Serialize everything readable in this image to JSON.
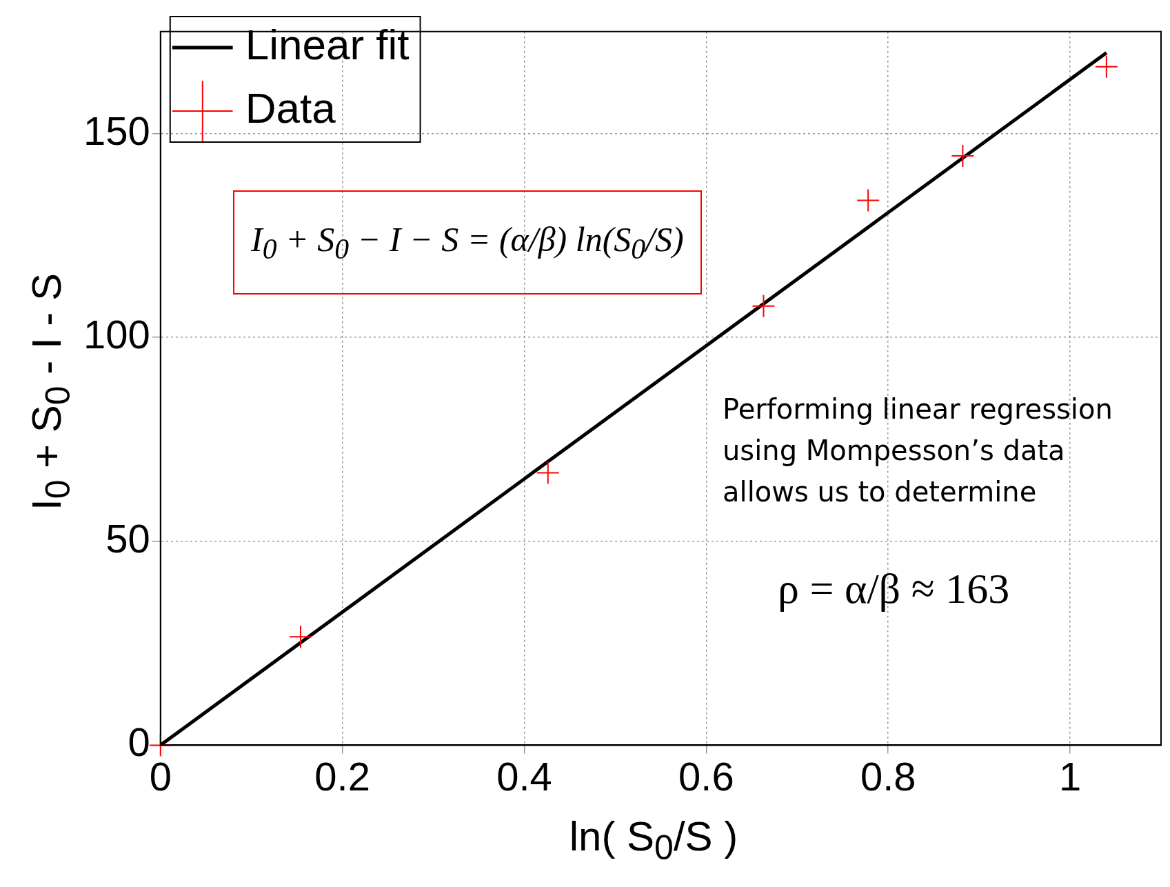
{
  "chart_data": {
    "type": "scatter",
    "xlabel": "ln( S$_{0}$/S )",
    "ylabel": "I$_{0}$ + S$_{0}$ - I - S",
    "xlim": [
      0,
      1.1
    ],
    "xticks": [
      0,
      0.2,
      0.4,
      0.6,
      0.8,
      1
    ],
    "ylim": [
      0,
      175
    ],
    "yticks": [
      0,
      50,
      100,
      150
    ],
    "grid": true,
    "legend": "top left",
    "series": [
      {
        "type": "line",
        "name": "Linear fit",
        "color": "#000000",
        "marker": "none",
        "x": [
          0,
          1.04
        ],
        "values": [
          0,
          169.8
        ]
      },
      {
        "type": "scatter",
        "name": "Data",
        "color": "#ff0000",
        "marker": "cross",
        "x": [
          0,
          0.154,
          0.426,
          0.663,
          0.778,
          0.882,
          1.04
        ],
        "values": [
          0,
          26.6,
          66.8,
          107.7,
          133.6,
          144.5,
          166.4
        ]
      }
    ],
    "annotations": [
      "I$_{0}$ + S$_{0}$ − I − S = (α/β) ln(S$_{0}$/S)",
      "Performing linear regression using Mompesson’s data allows us to determine",
      "ρ = α/β ≈ 163"
    ]
  }
}
